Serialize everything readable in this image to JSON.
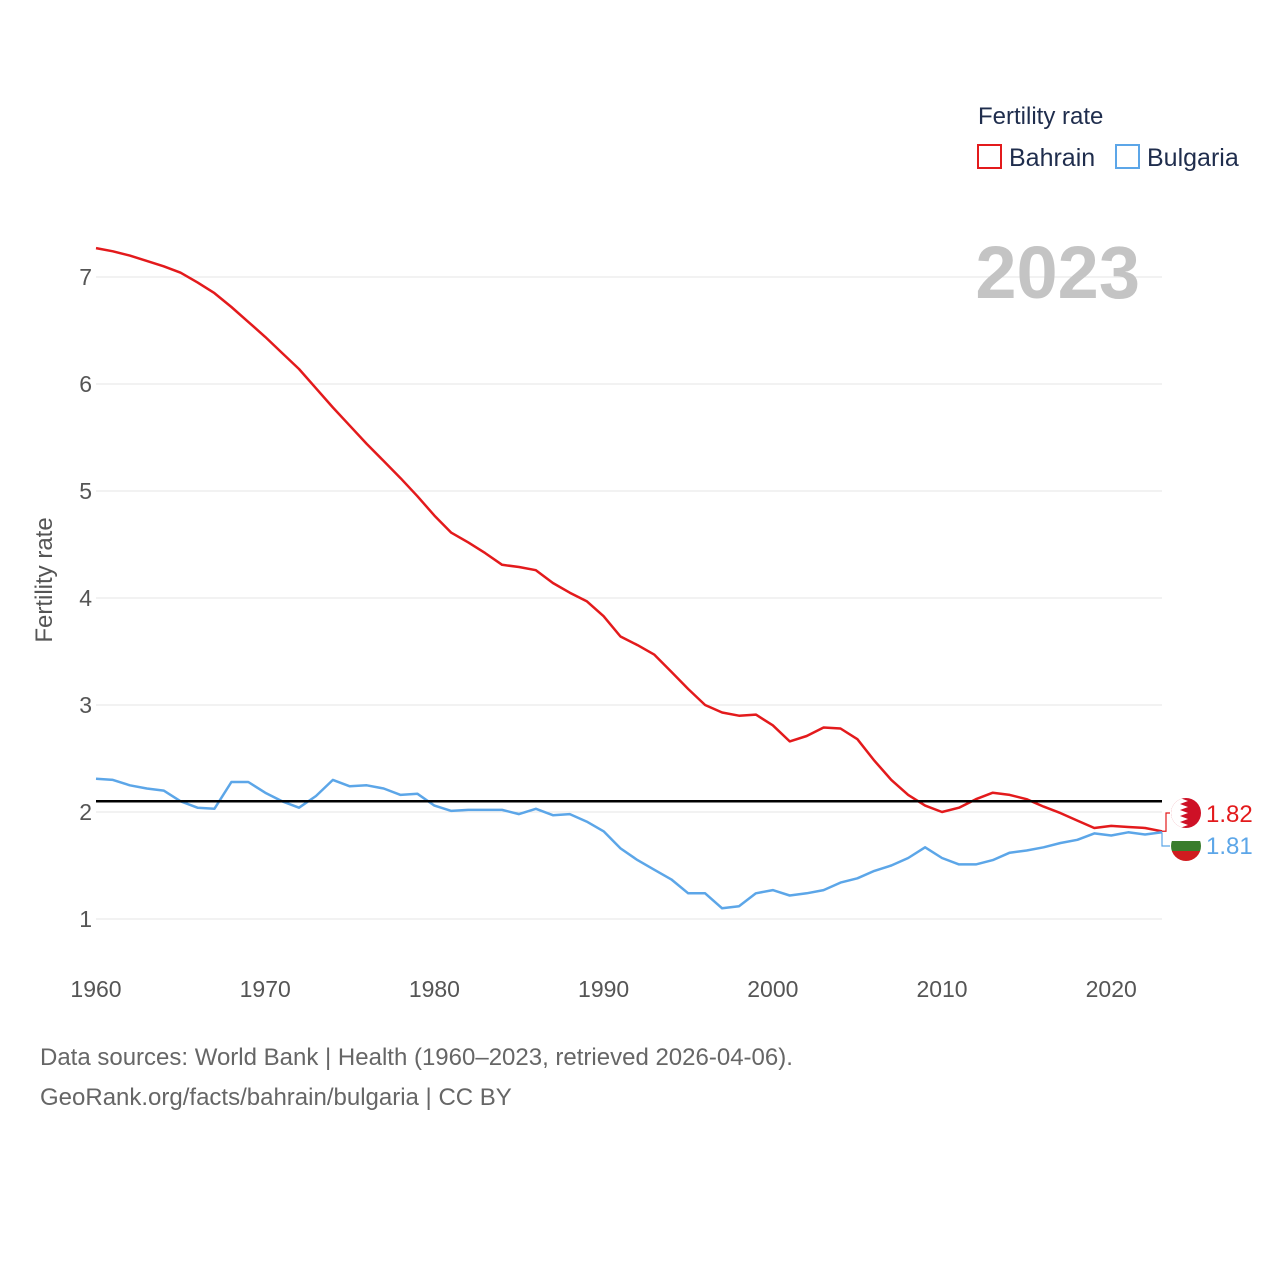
{
  "chart_data": {
    "type": "line",
    "ylabel": "Fertility rate",
    "xlabel": "",
    "xlim": [
      1960,
      2023
    ],
    "ylim": [
      0.5,
      7.4
    ],
    "xticks": [
      1960,
      1970,
      1980,
      1990,
      2000,
      2010,
      2020
    ],
    "yticks": [
      1,
      2,
      3,
      4,
      5,
      6,
      7
    ],
    "current_year": "2023",
    "legend": {
      "title": "Fertility rate",
      "position": "top-right"
    },
    "reference_line": {
      "value": 2.1,
      "color": "#000000"
    },
    "x": [
      1960,
      1961,
      1962,
      1963,
      1964,
      1965,
      1966,
      1967,
      1968,
      1969,
      1970,
      1971,
      1972,
      1973,
      1974,
      1975,
      1976,
      1977,
      1978,
      1979,
      1980,
      1981,
      1982,
      1983,
      1984,
      1985,
      1986,
      1987,
      1988,
      1989,
      1990,
      1991,
      1992,
      1993,
      1994,
      1995,
      1996,
      1997,
      1998,
      1999,
      2000,
      2001,
      2002,
      2003,
      2004,
      2005,
      2006,
      2007,
      2008,
      2009,
      2010,
      2011,
      2012,
      2013,
      2014,
      2015,
      2016,
      2017,
      2018,
      2019,
      2020,
      2021,
      2022,
      2023
    ],
    "series": [
      {
        "name": "Bahrain",
        "color": "#e31a1c",
        "end_label": "1.82",
        "values": [
          7.27,
          7.24,
          7.2,
          7.15,
          7.1,
          7.04,
          6.95,
          6.85,
          6.72,
          6.58,
          6.44,
          6.29,
          6.14,
          5.96,
          5.78,
          5.61,
          5.44,
          5.28,
          5.12,
          4.95,
          4.77,
          4.61,
          4.52,
          4.42,
          4.31,
          4.29,
          4.26,
          4.14,
          4.05,
          3.97,
          3.83,
          3.64,
          3.56,
          3.47,
          3.31,
          3.15,
          3.0,
          2.93,
          2.9,
          2.91,
          2.81,
          2.66,
          2.71,
          2.79,
          2.78,
          2.68,
          2.48,
          2.3,
          2.16,
          2.06,
          2.0,
          2.04,
          2.12,
          2.18,
          2.16,
          2.12,
          2.05,
          1.99,
          1.92,
          1.85,
          1.87,
          1.86,
          1.85,
          1.82
        ]
      },
      {
        "name": "Bulgaria",
        "color": "#5ca6e8",
        "end_label": "1.81",
        "values": [
          2.31,
          2.3,
          2.25,
          2.22,
          2.2,
          2.1,
          2.04,
          2.03,
          2.28,
          2.28,
          2.18,
          2.1,
          2.04,
          2.15,
          2.3,
          2.24,
          2.25,
          2.22,
          2.16,
          2.17,
          2.06,
          2.01,
          2.02,
          2.02,
          2.02,
          1.98,
          2.03,
          1.97,
          1.98,
          1.91,
          1.82,
          1.66,
          1.55,
          1.46,
          1.37,
          1.24,
          1.24,
          1.1,
          1.12,
          1.24,
          1.27,
          1.22,
          1.24,
          1.27,
          1.34,
          1.38,
          1.45,
          1.5,
          1.57,
          1.67,
          1.57,
          1.51,
          1.51,
          1.55,
          1.62,
          1.64,
          1.67,
          1.71,
          1.74,
          1.8,
          1.78,
          1.81,
          1.79,
          1.81
        ]
      }
    ]
  },
  "footer": {
    "source": "Data sources: World Bank | Health (1960–2023, retrieved 2026-04-06).",
    "credit": "GeoRank.org/facts/bahrain/bulgaria | CC BY"
  }
}
